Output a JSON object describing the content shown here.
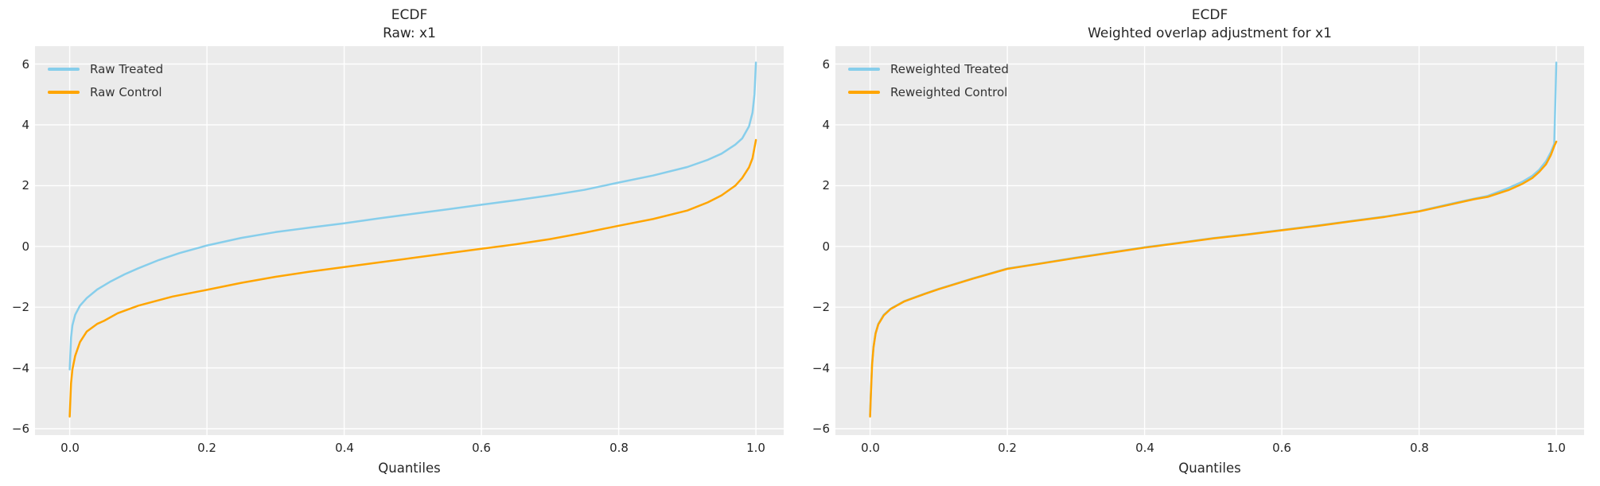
{
  "figure": {
    "background": "#ffffff",
    "axes_background": "#ebebeb",
    "grid_color": "#ffffff",
    "text_color": "#262626",
    "legend_text_color": "#333333",
    "treated_color": "#87ceeb",
    "control_color": "#ffa500"
  },
  "chart_data": [
    {
      "type": "line",
      "title": "ECDF\nRaw: x1",
      "title_line1": "ECDF",
      "title_line2": "Raw: x1",
      "xlabel": "Quantiles",
      "ylabel": "",
      "xlim": [
        -0.05,
        1.04
      ],
      "ylim": [
        -6.2,
        6.6
      ],
      "xticks": [
        0.0,
        0.2,
        0.4,
        0.6,
        0.8,
        1.0
      ],
      "xtick_labels": [
        "0.0",
        "0.2",
        "0.4",
        "0.6",
        "0.8",
        "1.0"
      ],
      "yticks": [
        -6,
        -4,
        -2,
        0,
        2,
        4,
        6
      ],
      "ytick_labels": [
        "−6",
        "−4",
        "−2",
        "0",
        "2",
        "4",
        "6"
      ],
      "grid": true,
      "legend_position": "upper left",
      "series": [
        {
          "name": "Raw Treated",
          "color": "#87ceeb",
          "x": [
            0.0,
            0.002,
            0.004,
            0.008,
            0.015,
            0.025,
            0.04,
            0.06,
            0.08,
            0.1,
            0.13,
            0.16,
            0.2,
            0.25,
            0.3,
            0.35,
            0.4,
            0.45,
            0.5,
            0.55,
            0.6,
            0.65,
            0.7,
            0.75,
            0.8,
            0.85,
            0.9,
            0.93,
            0.95,
            0.97,
            0.98,
            0.99,
            0.995,
            0.998,
            1.0
          ],
          "y": [
            -4.05,
            -3.0,
            -2.6,
            -2.25,
            -1.95,
            -1.7,
            -1.42,
            -1.15,
            -0.92,
            -0.72,
            -0.45,
            -0.22,
            0.03,
            0.28,
            0.47,
            0.62,
            0.76,
            0.92,
            1.07,
            1.22,
            1.37,
            1.52,
            1.68,
            1.86,
            2.1,
            2.33,
            2.61,
            2.85,
            3.05,
            3.35,
            3.55,
            3.95,
            4.4,
            5.0,
            6.05
          ]
        },
        {
          "name": "Raw Control",
          "color": "#ffa500",
          "x": [
            0.0,
            0.002,
            0.004,
            0.008,
            0.015,
            0.025,
            0.04,
            0.05,
            0.07,
            0.1,
            0.15,
            0.2,
            0.25,
            0.3,
            0.35,
            0.4,
            0.45,
            0.5,
            0.55,
            0.6,
            0.65,
            0.7,
            0.75,
            0.8,
            0.85,
            0.9,
            0.93,
            0.95,
            0.97,
            0.98,
            0.99,
            0.995,
            1.0
          ],
          "y": [
            -5.6,
            -4.5,
            -4.05,
            -3.6,
            -3.15,
            -2.8,
            -2.55,
            -2.45,
            -2.2,
            -1.95,
            -1.65,
            -1.43,
            -1.2,
            -1.0,
            -0.83,
            -0.68,
            -0.53,
            -0.38,
            -0.23,
            -0.08,
            0.07,
            0.24,
            0.45,
            0.68,
            0.9,
            1.18,
            1.45,
            1.68,
            2.0,
            2.25,
            2.6,
            2.9,
            3.5
          ]
        }
      ]
    },
    {
      "type": "line",
      "title": "ECDF\nWeighted overlap adjustment for x1",
      "title_line1": "ECDF",
      "title_line2": "Weighted overlap adjustment for x1",
      "xlabel": "Quantiles",
      "ylabel": "",
      "xlim": [
        -0.05,
        1.04
      ],
      "ylim": [
        -6.2,
        6.6
      ],
      "xticks": [
        0.0,
        0.2,
        0.4,
        0.6,
        0.8,
        1.0
      ],
      "xtick_labels": [
        "0.0",
        "0.2",
        "0.4",
        "0.6",
        "0.8",
        "1.0"
      ],
      "yticks": [
        -6,
        -4,
        -2,
        0,
        2,
        4,
        6
      ],
      "ytick_labels": [
        "−6",
        "−4",
        "−2",
        "0",
        "2",
        "4",
        "6"
      ],
      "grid": true,
      "legend_position": "upper left",
      "series": [
        {
          "name": "Reweighted Treated",
          "color": "#87ceeb",
          "x": [
            0.0,
            0.001,
            0.002,
            0.003,
            0.005,
            0.008,
            0.012,
            0.02,
            0.03,
            0.05,
            0.08,
            0.1,
            0.15,
            0.2,
            0.25,
            0.3,
            0.35,
            0.4,
            0.45,
            0.5,
            0.55,
            0.6,
            0.65,
            0.7,
            0.75,
            0.8,
            0.85,
            0.88,
            0.9,
            0.93,
            0.95,
            0.965,
            0.975,
            0.985,
            0.992,
            0.997,
            1.0
          ],
          "y": [
            -5.55,
            -4.95,
            -4.35,
            -3.85,
            -3.3,
            -2.85,
            -2.55,
            -2.25,
            -2.05,
            -1.8,
            -1.55,
            -1.4,
            -1.05,
            -0.73,
            -0.55,
            -0.37,
            -0.2,
            -0.03,
            0.12,
            0.27,
            0.4,
            0.54,
            0.68,
            0.83,
            0.98,
            1.16,
            1.42,
            1.57,
            1.66,
            1.92,
            2.12,
            2.32,
            2.52,
            2.8,
            3.1,
            3.38,
            6.05
          ]
        },
        {
          "name": "Reweighted Control",
          "color": "#ffa500",
          "x": [
            0.0,
            0.001,
            0.002,
            0.003,
            0.005,
            0.008,
            0.012,
            0.02,
            0.03,
            0.05,
            0.08,
            0.1,
            0.15,
            0.2,
            0.25,
            0.3,
            0.35,
            0.4,
            0.45,
            0.5,
            0.55,
            0.6,
            0.65,
            0.7,
            0.75,
            0.8,
            0.85,
            0.88,
            0.9,
            0.93,
            0.95,
            0.965,
            0.975,
            0.985,
            0.992,
            0.997,
            1.0
          ],
          "y": [
            -5.6,
            -5.0,
            -4.4,
            -3.9,
            -3.32,
            -2.87,
            -2.57,
            -2.27,
            -2.06,
            -1.81,
            -1.56,
            -1.41,
            -1.06,
            -0.74,
            -0.56,
            -0.38,
            -0.21,
            -0.04,
            0.11,
            0.26,
            0.39,
            0.53,
            0.67,
            0.82,
            0.97,
            1.15,
            1.4,
            1.55,
            1.63,
            1.85,
            2.05,
            2.25,
            2.45,
            2.7,
            3.0,
            3.3,
            3.45
          ]
        }
      ]
    }
  ]
}
